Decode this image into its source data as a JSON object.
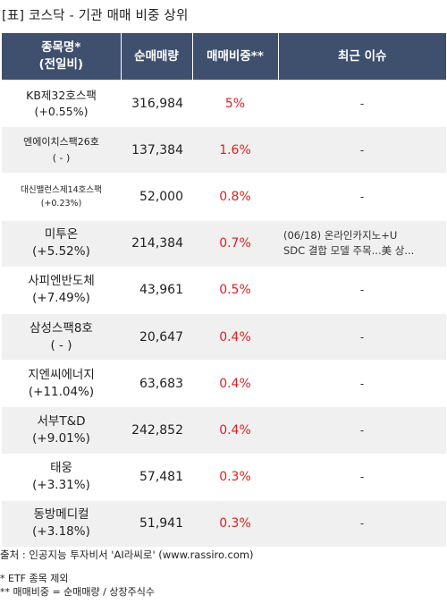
{
  "title": "[표] 코스닥 - 기관 매매 비중 상위",
  "columns": {
    "name_line1": "종목명*",
    "name_line2": "(전일비)",
    "volume": "순매매량",
    "ratio": "매매비중**",
    "issue": "최근 이슈"
  },
  "rows": [
    {
      "name": "KB제32호스팩",
      "change": "(+0.55%)",
      "volume": "316,984",
      "ratio": "5%",
      "issue": "-"
    },
    {
      "name": "엔에이치스팩26호",
      "change": "( - )",
      "volume": "137,384",
      "ratio": "1.6%",
      "issue": "-"
    },
    {
      "name": "대신밸런스제14호스팩",
      "change": "(+0.23%)",
      "volume": "52,000",
      "ratio": "0.8%",
      "issue": "-"
    },
    {
      "name": "미투온",
      "change": "(+5.52%)",
      "volume": "214,384",
      "ratio": "0.7%",
      "issue_line1": "(06/18) 온라인카지노+U",
      "issue_line2": "SDC 결합 모델 주목...美 상..."
    },
    {
      "name": "사피엔반도체",
      "change": "(+7.49%)",
      "volume": "43,961",
      "ratio": "0.5%",
      "issue": "-"
    },
    {
      "name": "삼성스팩8호",
      "change": "( - )",
      "volume": "20,647",
      "ratio": "0.4%",
      "issue": "-"
    },
    {
      "name": "지엔씨에너지",
      "change": "(+11.04%)",
      "volume": "63,683",
      "ratio": "0.4%",
      "issue": "-"
    },
    {
      "name": "서부T&D",
      "change": "(+9.01%)",
      "volume": "242,852",
      "ratio": "0.4%",
      "issue": "-"
    },
    {
      "name": "태웅",
      "change": "(+3.31%)",
      "volume": "57,481",
      "ratio": "0.3%",
      "issue": "-"
    },
    {
      "name": "동방메디컬",
      "change": "(+3.18%)",
      "volume": "51,941",
      "ratio": "0.3%",
      "issue": "-"
    }
  ],
  "source": "출처 : 인공지능 투자비서 'AI라씨로' (www.rassiro.com)",
  "note1": "* ETF 종목 제외",
  "note2": "** 매매비중 = 순매매량 / 상장주식수"
}
